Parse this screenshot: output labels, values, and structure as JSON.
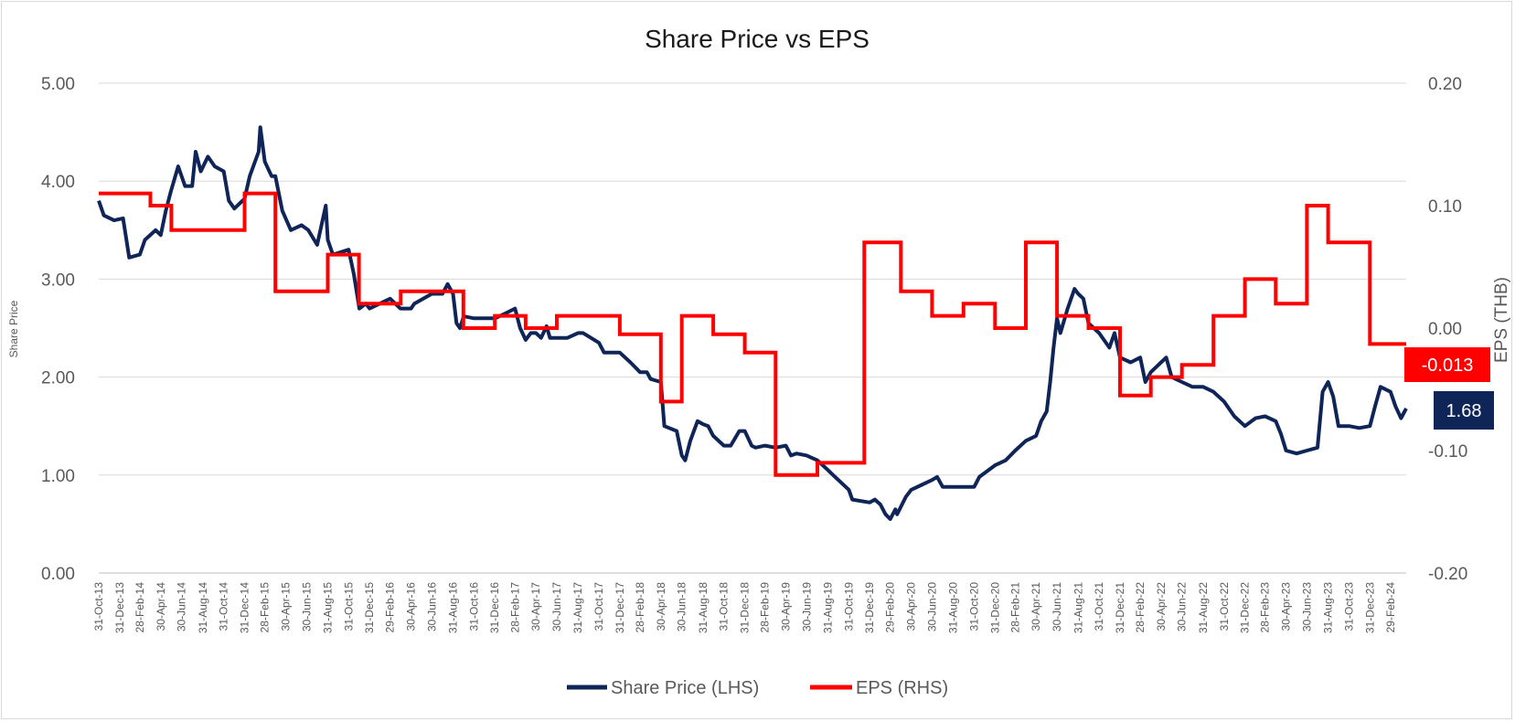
{
  "chart_data": {
    "type": "line",
    "title": "Share Price vs EPS",
    "y_left": {
      "label": "Share Price",
      "lim": [
        0,
        5
      ],
      "ticks": [
        "0.00",
        "1.00",
        "2.00",
        "3.00",
        "4.00",
        "5.00"
      ]
    },
    "y_right": {
      "label": "EPS (THB)",
      "lim": [
        -0.2,
        0.2
      ],
      "ticks": [
        "-0.20",
        "-0.10",
        "0.00",
        "0.10",
        "0.20"
      ]
    },
    "x_ticks": [
      "31-Oct-13",
      "31-Dec-13",
      "28-Feb-14",
      "30-Apr-14",
      "30-Jun-14",
      "31-Aug-14",
      "31-Oct-14",
      "31-Dec-14",
      "28-Feb-15",
      "30-Apr-15",
      "30-Jun-15",
      "31-Aug-15",
      "31-Oct-15",
      "31-Dec-15",
      "29-Feb-16",
      "30-Apr-16",
      "30-Jun-16",
      "31-Aug-16",
      "31-Oct-16",
      "31-Dec-16",
      "28-Feb-17",
      "30-Apr-17",
      "30-Jun-17",
      "31-Aug-17",
      "31-Oct-17",
      "31-Dec-17",
      "28-Feb-18",
      "30-Apr-18",
      "30-Jun-18",
      "31-Aug-18",
      "31-Oct-18",
      "31-Dec-18",
      "28-Feb-19",
      "30-Apr-19",
      "30-Jun-19",
      "31-Aug-19",
      "31-Oct-19",
      "31-Dec-19",
      "29-Feb-20",
      "30-Apr-20",
      "30-Jun-20",
      "31-Aug-20",
      "31-Oct-20",
      "31-Dec-20",
      "28-Feb-21",
      "30-Apr-21",
      "30-Jun-21",
      "31-Aug-21",
      "31-Oct-21",
      "31-Dec-21",
      "28-Feb-22",
      "30-Apr-22",
      "30-Jun-22",
      "31-Aug-22",
      "31-Oct-22",
      "31-Dec-22",
      "28-Feb-23",
      "30-Apr-23",
      "30-Jun-23",
      "31-Aug-23",
      "31-Oct-23",
      "31-Dec-23",
      "29-Feb-24"
    ],
    "grid": true,
    "legend_position": "bottom",
    "series": [
      {
        "name": "Share Price (LHS)",
        "axis": "left",
        "color": "#0f2557",
        "step": false,
        "last_value_label": "1.68",
        "points": [
          [
            "31-Oct-13",
            3.8
          ],
          [
            "15-Nov-13",
            3.65
          ],
          [
            "15-Dec-13",
            3.6
          ],
          [
            "10-Jan-14",
            3.62
          ],
          [
            "28-Jan-14",
            3.22
          ],
          [
            "28-Feb-14",
            3.25
          ],
          [
            "15-Mar-14",
            3.4
          ],
          [
            "15-Apr-14",
            3.5
          ],
          [
            "30-Apr-14",
            3.45
          ],
          [
            "15-May-14",
            3.7
          ],
          [
            "30-May-14",
            3.9
          ],
          [
            "20-Jun-14",
            4.15
          ],
          [
            "10-Jul-14",
            3.95
          ],
          [
            "31-Jul-14",
            3.95
          ],
          [
            "10-Aug-14",
            4.3
          ],
          [
            "25-Aug-14",
            4.1
          ],
          [
            "15-Sep-14",
            4.25
          ],
          [
            "5-Oct-14",
            4.15
          ],
          [
            "31-Oct-14",
            4.1
          ],
          [
            "15-Nov-14",
            3.8
          ],
          [
            "1-Dec-14",
            3.72
          ],
          [
            "31-Dec-14",
            3.82
          ],
          [
            "15-Jan-15",
            4.05
          ],
          [
            "10-Feb-15",
            4.3
          ],
          [
            "15-Feb-15",
            4.55
          ],
          [
            "28-Feb-15",
            4.2
          ],
          [
            "20-Mar-15",
            4.05
          ],
          [
            "31-Mar-15",
            4.05
          ],
          [
            "20-Apr-15",
            3.7
          ],
          [
            "15-May-15",
            3.5
          ],
          [
            "15-Jun-15",
            3.55
          ],
          [
            "5-Jul-15",
            3.5
          ],
          [
            "31-Jul-15",
            3.35
          ],
          [
            "25-Aug-15",
            3.75
          ],
          [
            "31-Aug-15",
            3.4
          ],
          [
            "15-Sep-15",
            3.25
          ],
          [
            "31-Oct-15",
            3.3
          ],
          [
            "15-Nov-15",
            3.05
          ],
          [
            "1-Dec-15",
            2.7
          ],
          [
            "20-Dec-15",
            2.75
          ],
          [
            "31-Dec-15",
            2.7
          ],
          [
            "29-Feb-16",
            2.8
          ],
          [
            "30-Mar-16",
            2.7
          ],
          [
            "30-Apr-16",
            2.7
          ],
          [
            "10-May-16",
            2.75
          ],
          [
            "30-Jun-16",
            2.85
          ],
          [
            "31-Jul-16",
            2.85
          ],
          [
            "15-Aug-16",
            2.95
          ],
          [
            "31-Aug-16",
            2.85
          ],
          [
            "10-Sep-16",
            2.55
          ],
          [
            "20-Sep-16",
            2.5
          ],
          [
            "1-Oct-16",
            2.62
          ],
          [
            "31-Oct-16",
            2.6
          ],
          [
            "31-Dec-16",
            2.6
          ],
          [
            "31-Jan-17",
            2.65
          ],
          [
            "28-Feb-17",
            2.7
          ],
          [
            "15-Mar-17",
            2.5
          ],
          [
            "31-Mar-17",
            2.38
          ],
          [
            "15-Apr-17",
            2.45
          ],
          [
            "30-Apr-17",
            2.45
          ],
          [
            "15-May-17",
            2.4
          ],
          [
            "31-May-17",
            2.52
          ],
          [
            "10-Jun-17",
            2.4
          ],
          [
            "30-Jun-17",
            2.4
          ],
          [
            "31-Jul-17",
            2.4
          ],
          [
            "31-Aug-17",
            2.45
          ],
          [
            "15-Sep-17",
            2.45
          ],
          [
            "31-Oct-17",
            2.35
          ],
          [
            "15-Nov-17",
            2.25
          ],
          [
            "31-Dec-17",
            2.25
          ],
          [
            "31-Jan-18",
            2.15
          ],
          [
            "28-Feb-18",
            2.05
          ],
          [
            "20-Mar-18",
            2.05
          ],
          [
            "31-Mar-18",
            1.98
          ],
          [
            "30-Apr-18",
            1.95
          ],
          [
            "10-May-18",
            1.5
          ],
          [
            "15-Jun-18",
            1.45
          ],
          [
            "30-Jun-18",
            1.2
          ],
          [
            "10-Jul-18",
            1.15
          ],
          [
            "25-Jul-18",
            1.35
          ],
          [
            "15-Aug-18",
            1.55
          ],
          [
            "31-Aug-18",
            1.52
          ],
          [
            "15-Sep-18",
            1.5
          ],
          [
            "30-Sep-18",
            1.4
          ],
          [
            "31-Oct-18",
            1.3
          ],
          [
            "20-Nov-18",
            1.3
          ],
          [
            "15-Dec-18",
            1.45
          ],
          [
            "31-Dec-18",
            1.45
          ],
          [
            "20-Jan-19",
            1.3
          ],
          [
            "31-Jan-19",
            1.28
          ],
          [
            "28-Feb-19",
            1.3
          ],
          [
            "31-Mar-19",
            1.28
          ],
          [
            "30-Apr-19",
            1.3
          ],
          [
            "15-May-19",
            1.2
          ],
          [
            "31-May-19",
            1.22
          ],
          [
            "30-Jun-19",
            1.2
          ],
          [
            "31-Jul-19",
            1.15
          ],
          [
            "31-Aug-19",
            1.05
          ],
          [
            "15-Sep-19",
            1.0
          ],
          [
            "31-Oct-19",
            0.85
          ],
          [
            "10-Nov-19",
            0.75
          ],
          [
            "31-Dec-19",
            0.72
          ],
          [
            "15-Jan-20",
            0.75
          ],
          [
            "31-Jan-20",
            0.7
          ],
          [
            "15-Feb-20",
            0.6
          ],
          [
            "29-Feb-20",
            0.55
          ],
          [
            "15-Mar-20",
            0.65
          ],
          [
            "20-Mar-20",
            0.6
          ],
          [
            "15-Apr-20",
            0.78
          ],
          [
            "30-Apr-20",
            0.85
          ],
          [
            "31-May-20",
            0.9
          ],
          [
            "30-Jun-20",
            0.95
          ],
          [
            "15-Jul-20",
            0.98
          ],
          [
            "31-Jul-20",
            0.88
          ],
          [
            "31-Aug-20",
            0.88
          ],
          [
            "31-Oct-20",
            0.88
          ],
          [
            "15-Nov-20",
            0.98
          ],
          [
            "31-Dec-20",
            1.1
          ],
          [
            "31-Jan-21",
            1.15
          ],
          [
            "28-Feb-21",
            1.25
          ],
          [
            "31-Mar-21",
            1.35
          ],
          [
            "30-Apr-21",
            1.4
          ],
          [
            "15-May-21",
            1.55
          ],
          [
            "31-May-21",
            1.65
          ],
          [
            "10-Jun-21",
            1.95
          ],
          [
            "20-Jun-21",
            2.3
          ],
          [
            "30-Jun-21",
            2.6
          ],
          [
            "10-Jul-21",
            2.45
          ],
          [
            "31-Jul-21",
            2.7
          ],
          [
            "20-Aug-21",
            2.9
          ],
          [
            "31-Aug-21",
            2.85
          ],
          [
            "15-Sep-21",
            2.8
          ],
          [
            "30-Sep-21",
            2.55
          ],
          [
            "31-Oct-21",
            2.45
          ],
          [
            "30-Nov-21",
            2.3
          ],
          [
            "15-Dec-21",
            2.45
          ],
          [
            "31-Dec-21",
            2.2
          ],
          [
            "31-Jan-22",
            2.15
          ],
          [
            "28-Feb-22",
            2.2
          ],
          [
            "15-Mar-22",
            1.95
          ],
          [
            "31-Mar-22",
            2.05
          ],
          [
            "30-Apr-22",
            2.15
          ],
          [
            "15-May-22",
            2.2
          ],
          [
            "31-May-22",
            2.0
          ],
          [
            "30-Jun-22",
            1.95
          ],
          [
            "31-Jul-22",
            1.9
          ],
          [
            "31-Aug-22",
            1.9
          ],
          [
            "30-Sep-22",
            1.85
          ],
          [
            "31-Oct-22",
            1.75
          ],
          [
            "30-Nov-22",
            1.6
          ],
          [
            "31-Dec-22",
            1.5
          ],
          [
            "31-Jan-23",
            1.58
          ],
          [
            "28-Feb-23",
            1.6
          ],
          [
            "31-Mar-23",
            1.55
          ],
          [
            "15-Apr-23",
            1.42
          ],
          [
            "30-Apr-23",
            1.25
          ],
          [
            "31-May-23",
            1.22
          ],
          [
            "30-Jun-23",
            1.25
          ],
          [
            "31-Jul-23",
            1.28
          ],
          [
            "15-Aug-23",
            1.85
          ],
          [
            "31-Aug-23",
            1.95
          ],
          [
            "15-Sep-23",
            1.8
          ],
          [
            "30-Sep-23",
            1.5
          ],
          [
            "31-Oct-23",
            1.5
          ],
          [
            "30-Nov-23",
            1.48
          ],
          [
            "31-Dec-23",
            1.5
          ],
          [
            "15-Jan-24",
            1.7
          ],
          [
            "31-Jan-24",
            1.9
          ],
          [
            "29-Feb-24",
            1.85
          ],
          [
            "15-Mar-24",
            1.7
          ],
          [
            "31-Mar-24",
            1.58
          ],
          [
            "15-Apr-24",
            1.68
          ]
        ]
      },
      {
        "name": "EPS (RHS)",
        "axis": "right",
        "color": "#ff0000",
        "step": true,
        "last_value_label": "-0.013",
        "points": [
          [
            "31-Oct-13",
            0.11
          ],
          [
            "31-Mar-14",
            0.1
          ],
          [
            "31-May-14",
            0.08
          ],
          [
            "31-Dec-14",
            0.11
          ],
          [
            "31-Mar-15",
            0.03
          ],
          [
            "31-Aug-15",
            0.06
          ],
          [
            "30-Nov-15",
            0.02
          ],
          [
            "31-Mar-16",
            0.03
          ],
          [
            "30-Sep-16",
            0.0
          ],
          [
            "31-Dec-16",
            0.01
          ],
          [
            "31-Mar-17",
            0.0
          ],
          [
            "30-Jun-17",
            0.01
          ],
          [
            "31-Dec-17",
            -0.005
          ],
          [
            "30-Apr-18",
            -0.06
          ],
          [
            "30-Jun-18",
            0.01
          ],
          [
            "30-Sep-18",
            -0.005
          ],
          [
            "31-Dec-18",
            -0.02
          ],
          [
            "31-Mar-19",
            -0.12
          ],
          [
            "31-Jul-19",
            -0.11
          ],
          [
            "15-Dec-19",
            0.07
          ],
          [
            "31-Mar-20",
            0.03
          ],
          [
            "30-Jun-20",
            0.01
          ],
          [
            "30-Sep-20",
            0.02
          ],
          [
            "31-Dec-20",
            0.0
          ],
          [
            "31-Mar-21",
            0.07
          ],
          [
            "30-Jun-21",
            0.01
          ],
          [
            "30-Sep-21",
            0.0
          ],
          [
            "31-Dec-21",
            -0.055
          ],
          [
            "31-Mar-22",
            -0.04
          ],
          [
            "30-Jun-22",
            -0.03
          ],
          [
            "30-Sep-22",
            0.01
          ],
          [
            "31-Dec-22",
            0.04
          ],
          [
            "31-Mar-23",
            0.02
          ],
          [
            "30-Jun-23",
            0.1
          ],
          [
            "31-Aug-23",
            0.07
          ],
          [
            "31-Dec-23",
            -0.013
          ],
          [
            "15-Apr-24",
            -0.013
          ]
        ]
      }
    ]
  }
}
